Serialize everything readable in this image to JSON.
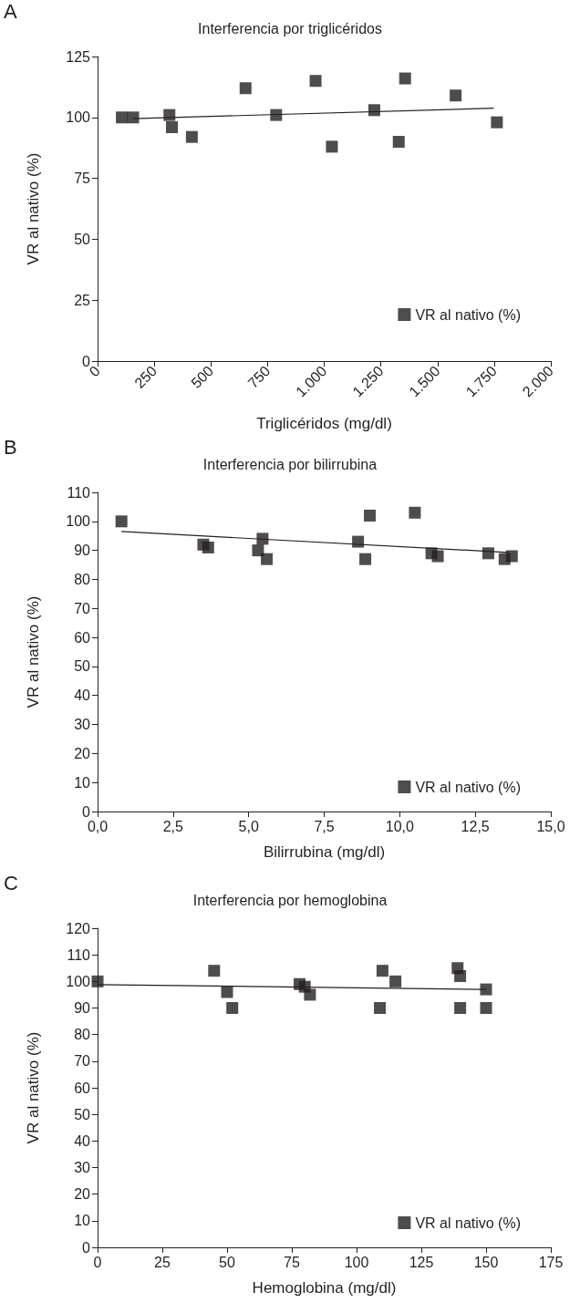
{
  "chart_data": [
    {
      "type": "scatter",
      "title": "Interferencia por triglicéridos",
      "xlabel": "Triglicéridos (mg/dl)",
      "ylabel": "VR al nativo (%)",
      "annotations": [
        "A"
      ],
      "xlim": [
        0,
        2000
      ],
      "xticks": [
        0,
        {
          "value": 250,
          "label": "250"
        },
        {
          "value": 500,
          "label": "500"
        },
        {
          "value": 750,
          "label": "750"
        },
        {
          "value": 1000,
          "label": "1.000"
        },
        {
          "value": 1250,
          "label": "1.250"
        },
        {
          "value": 1500,
          "label": "1.500"
        },
        {
          "value": 1750,
          "label": "1.750"
        },
        {
          "value": 2000,
          "label": "2.000"
        }
      ],
      "ylim": [
        0,
        125
      ],
      "yticks": [
        0,
        25,
        50,
        75,
        100,
        125
      ],
      "grid": false,
      "legend": "bottom right",
      "marker": "square",
      "series": [
        {
          "name": "VR al nativo (%)",
          "color": "#231f20",
          "x": [
            107,
            157,
            317,
            328,
            416,
            653,
            788,
            962,
            1034,
            1221,
            1329,
            1357,
            1580,
            1762
          ],
          "values": [
            100,
            100,
            101,
            96,
            92,
            112,
            101,
            115,
            88,
            103,
            90,
            116,
            109,
            98
          ]
        },
        {
          "type": "line",
          "color": "#231f20",
          "marker": "none",
          "line_style": "solid",
          "x": [
            157,
            1748
          ],
          "values": [
            99.5,
            103.8
          ]
        }
      ]
    },
    {
      "type": "scatter",
      "title": "Interferencia por bilirrubina",
      "xlabel": "Bilirrubina (mg/dl)",
      "ylabel": "VR al nativo (%)",
      "annotations": [
        "B"
      ],
      "xlim": [
        0,
        15
      ],
      "xticks": [
        {
          "value": 0,
          "label": "0,0"
        },
        {
          "value": 2.5,
          "label": "2,5"
        },
        {
          "value": 5,
          "label": "5,0"
        },
        {
          "value": 7.5,
          "label": "7,5"
        },
        {
          "value": 10,
          "label": "10,0"
        },
        {
          "value": 12.5,
          "label": "12,5"
        },
        {
          "value": 15,
          "label": "15,0"
        }
      ],
      "ylim": [
        0,
        110
      ],
      "yticks": [
        0,
        10,
        20,
        30,
        40,
        50,
        60,
        70,
        80,
        90,
        100,
        110
      ],
      "grid": false,
      "legend": "bottom right",
      "marker": "square",
      "series": [
        {
          "name": "VR al nativo (%)",
          "color": "#231f20",
          "x": [
            0.79,
            3.5,
            3.66,
            5.31,
            5.46,
            5.6,
            8.62,
            8.86,
            9.01,
            10.5,
            11.05,
            11.26,
            12.93,
            13.47,
            13.71
          ],
          "values": [
            100,
            92,
            91,
            90,
            94,
            87,
            93,
            87,
            102,
            103,
            89,
            88,
            89,
            87,
            88
          ]
        },
        {
          "type": "line",
          "color": "#231f20",
          "marker": "none",
          "line_style": "solid",
          "x": [
            0.79,
            13.58
          ],
          "values": [
            96.5,
            89.3
          ]
        }
      ]
    },
    {
      "type": "scatter",
      "title": "Interferencia por hemoglobina",
      "xlabel": "Hemoglobina (mg/dl)",
      "ylabel": "VR al nativo (%)",
      "annotations": [
        "C"
      ],
      "xlim": [
        0,
        175
      ],
      "xticks": [
        0,
        25,
        50,
        75,
        100,
        125,
        150,
        175
      ],
      "ylim": [
        0,
        120
      ],
      "yticks": [
        0,
        10,
        20,
        30,
        40,
        50,
        60,
        70,
        80,
        90,
        100,
        110,
        120
      ],
      "grid": false,
      "legend": "bottom right",
      "marker": "square",
      "series": [
        {
          "name": "VR al nativo (%)",
          "color": "#231f20",
          "x": [
            0,
            45,
            50,
            52,
            78,
            80,
            82,
            109,
            110,
            115,
            139,
            140,
            140,
            150,
            150
          ],
          "values": [
            100,
            104,
            96,
            90,
            99,
            98,
            95,
            90,
            104,
            100,
            105,
            102,
            90,
            97,
            90
          ]
        },
        {
          "type": "line",
          "color": "#231f20",
          "marker": "none",
          "line_style": "solid",
          "x": [
            0,
            150
          ],
          "values": [
            98.8,
            97
          ]
        }
      ]
    }
  ]
}
